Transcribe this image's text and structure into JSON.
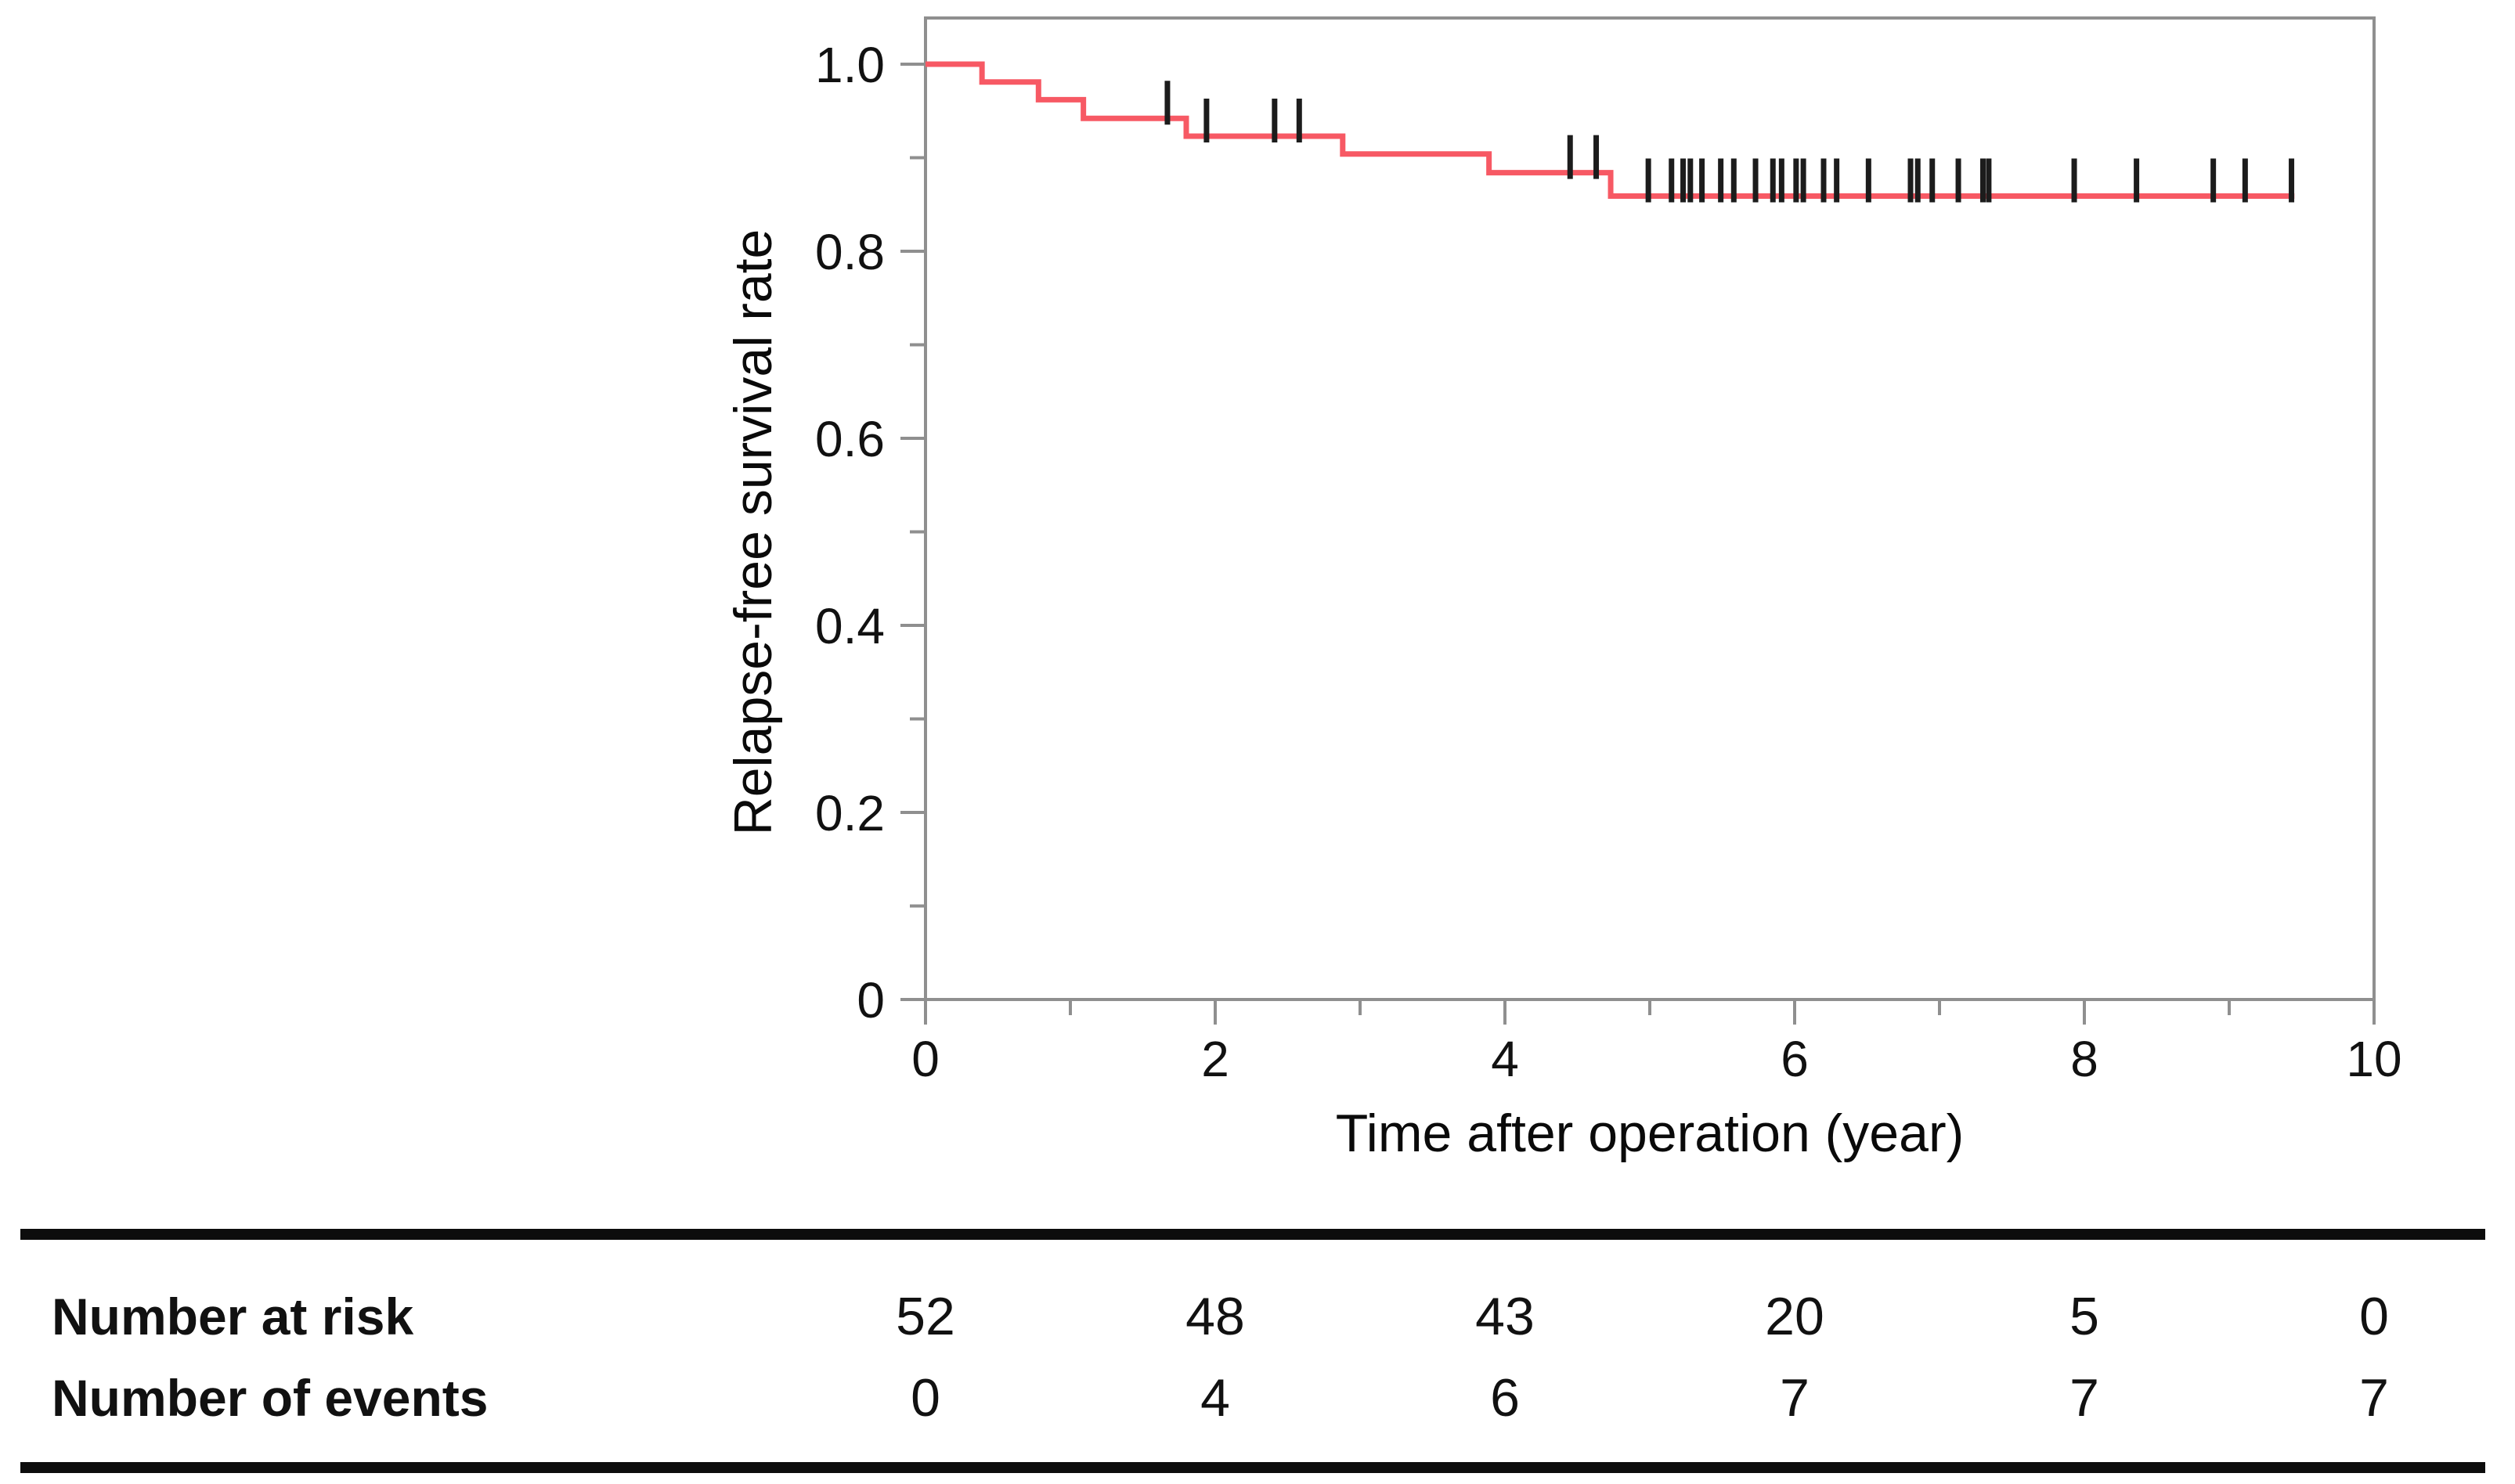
{
  "chart_data": {
    "type": "line",
    "subtype": "kaplan-meier-step",
    "title": "",
    "xlabel": "Time after operation (year)",
    "ylabel": "Relapse-free survival rate",
    "xlim": [
      0,
      10
    ],
    "ylim": [
      0,
      1.05
    ],
    "grid": false,
    "legend": "none",
    "axis_color": "#8F8F8F",
    "text_color": "#111111",
    "x_ticks": {
      "major": [
        0,
        2,
        4,
        6,
        8,
        10
      ],
      "labels": [
        "0",
        "2",
        "4",
        "6",
        "8",
        "10"
      ],
      "minor": [
        1,
        3,
        5,
        7,
        9
      ]
    },
    "y_ticks": {
      "major": [
        0,
        0.2,
        0.4,
        0.6,
        0.8,
        1.0
      ],
      "labels": [
        "0",
        "0.2",
        "0.4",
        "0.6",
        "0.8",
        "1.0"
      ],
      "minor": [
        0.1,
        0.3,
        0.5,
        0.7,
        0.9
      ]
    },
    "series": [
      {
        "name": "Relapse-free survival",
        "color": "#F75964",
        "steps": [
          [
            0,
            1.0
          ],
          [
            0.39,
            0.981
          ],
          [
            0.78,
            0.962
          ],
          [
            1.09,
            0.942
          ],
          [
            1.8,
            0.923
          ],
          [
            2.88,
            0.904
          ],
          [
            3.89,
            0.884
          ],
          [
            4.73,
            0.859
          ]
        ],
        "end_x": 9.45,
        "censor_color": "#1C1C1C",
        "censor_marks": [
          1.67,
          1.94,
          2.41,
          2.58,
          4.45,
          4.63,
          4.99,
          5.15,
          5.23,
          5.28,
          5.36,
          5.49,
          5.58,
          5.73,
          5.85,
          5.91,
          6.01,
          6.06,
          6.2,
          6.29,
          6.51,
          6.8,
          6.85,
          6.95,
          7.13,
          7.3,
          7.34,
          7.93,
          8.36,
          8.89,
          9.11,
          9.43
        ]
      }
    ],
    "risk_table": {
      "columns_years": [
        0,
        2,
        4,
        6,
        8,
        10
      ],
      "rows": [
        {
          "label": "Number at risk",
          "values": [
            "52",
            "48",
            "43",
            "20",
            "5",
            "0"
          ]
        },
        {
          "label": "Number of events",
          "values": [
            "0",
            "4",
            "6",
            "7",
            "7",
            "7"
          ]
        }
      ]
    }
  }
}
